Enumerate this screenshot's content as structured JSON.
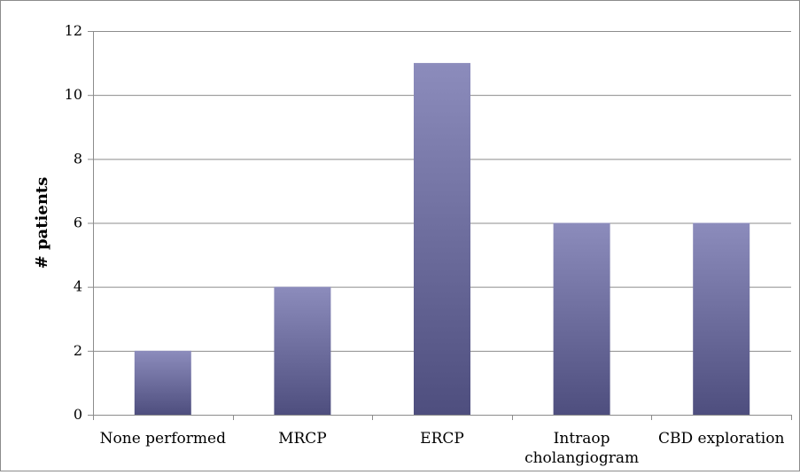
{
  "chart_data": {
    "type": "bar",
    "title": "",
    "xlabel": "",
    "ylabel": "# patients",
    "categories": [
      "None performed",
      "MRCP",
      "ERCP",
      "Intraop cholangiogram",
      "CBD exploration"
    ],
    "category_lines": [
      [
        "None performed"
      ],
      [
        "MRCP"
      ],
      [
        "ERCP"
      ],
      [
        "Intraop",
        "cholangiogram"
      ],
      [
        "CBD exploration"
      ]
    ],
    "values": [
      2,
      4,
      11,
      6,
      6
    ],
    "ylim": [
      0,
      12
    ],
    "yticks": [
      0,
      2,
      4,
      6,
      8,
      10,
      12
    ],
    "grid": true,
    "legend": "none",
    "colors": {
      "bar_top": "#8c8cbc",
      "bar_bottom": "#4e4e7e",
      "grid": "#8c8c8c"
    }
  }
}
